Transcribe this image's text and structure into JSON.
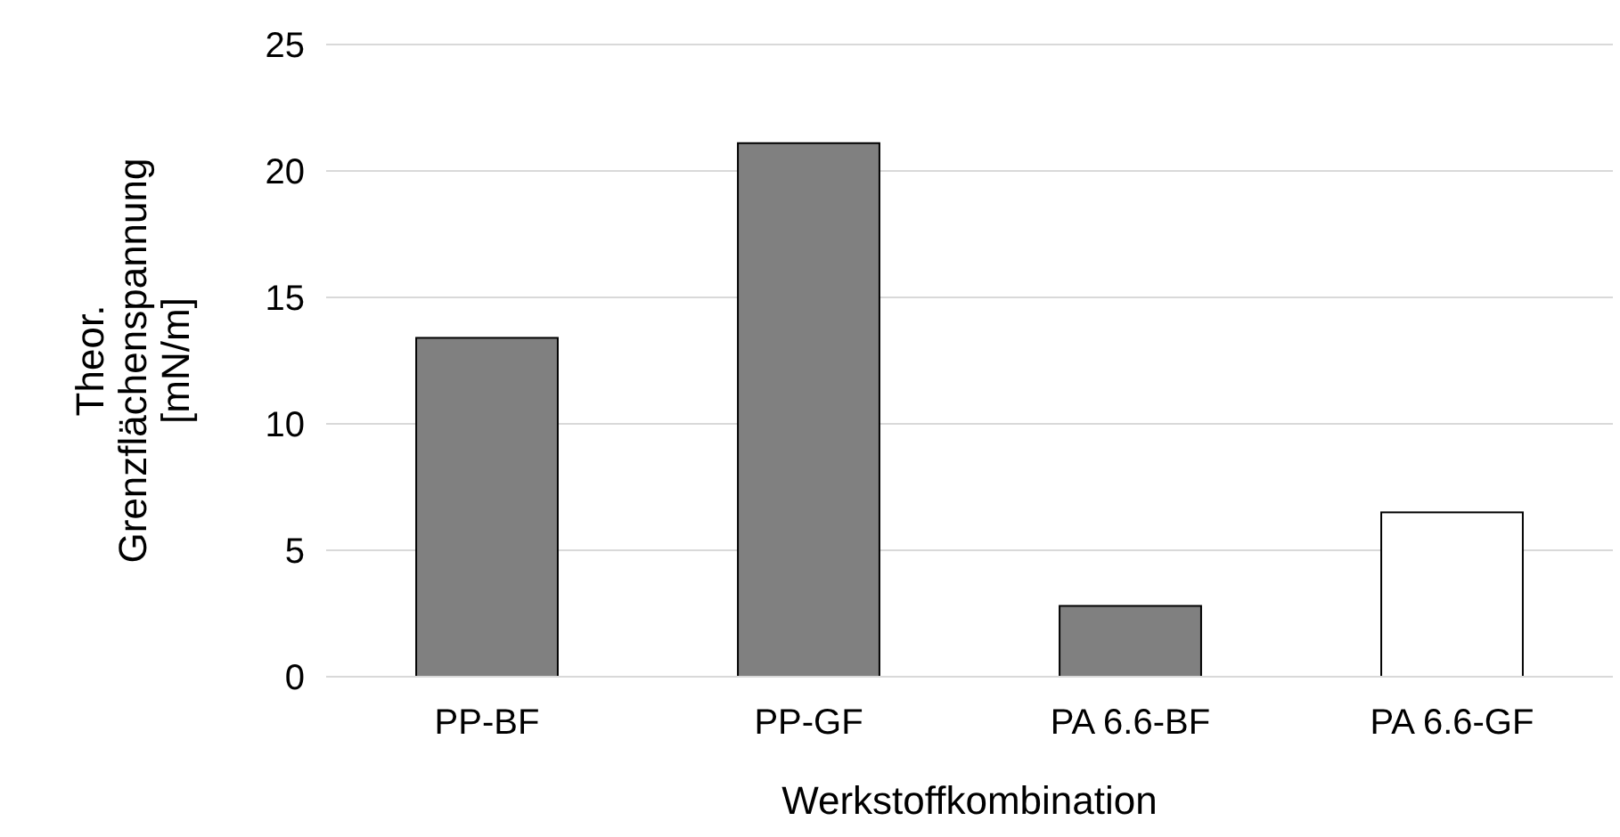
{
  "chart_data": {
    "type": "bar",
    "xlabel": "Werkstoffkombination",
    "ylabel": "Theor.\nGrenzflächenspannung\n[mN/m]",
    "categories": [
      "PP-BF",
      "PP-GF",
      "PA 6.6-BF",
      "PA 6.6-GF"
    ],
    "values": [
      13.4,
      21.1,
      2.8,
      6.5
    ],
    "colors": [
      "#808080",
      "#808080",
      "#808080",
      "#ffffff"
    ],
    "ylim": [
      0,
      25
    ],
    "yticks": [
      0,
      5,
      10,
      15,
      20,
      25
    ],
    "grid": "y"
  }
}
